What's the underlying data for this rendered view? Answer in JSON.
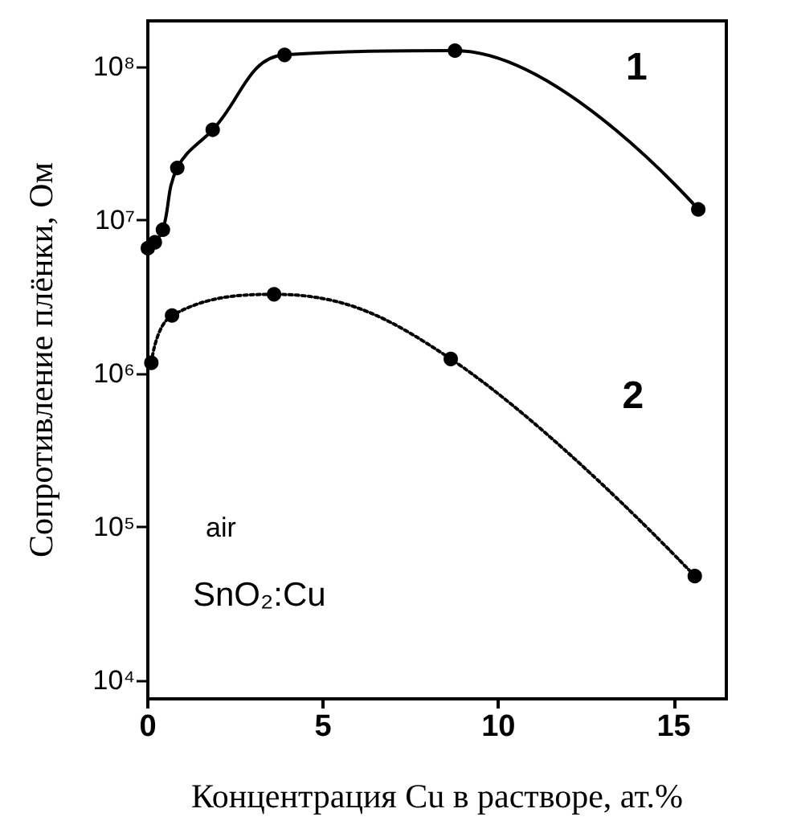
{
  "chart_data": {
    "type": "line",
    "xlabel": "Концентрация Cu в растворе, ат.%",
    "ylabel": "Сопротивление плёнки, Ом",
    "log": "y",
    "grid": false,
    "legend": false,
    "marker": "circle",
    "xlim": [
      0,
      16.5
    ],
    "xticks": [
      0,
      5,
      10,
      15
    ],
    "ylim": [
      7600,
      200000000
    ],
    "yticks": [
      {
        "value": 10000,
        "label": "10⁴"
      },
      {
        "value": 100000,
        "label": "10⁵"
      },
      {
        "value": 1000000,
        "label": "10⁶"
      },
      {
        "value": 10000000,
        "label": "10⁷"
      },
      {
        "value": 100000000,
        "label": "10⁸"
      }
    ],
    "series": [
      {
        "name": "1",
        "color": "#000000",
        "line_style": "solid",
        "x": [
          0,
          0.2,
          0.43,
          0.84,
          1.85,
          3.9,
          8.76,
          15.7
        ],
        "values": [
          6600000,
          7200000,
          8700000,
          22000000,
          39000000,
          120000000,
          128000000,
          11800000
        ]
      },
      {
        "name": "2",
        "color": "#000000",
        "line_style": "dotted",
        "x": [
          0.1,
          0.69,
          3.6,
          8.64,
          15.6
        ],
        "values": [
          1180000,
          2400000,
          3300000,
          1250000,
          48000
        ]
      }
    ],
    "annotations": [
      "air",
      "SnO₂:Cu"
    ]
  }
}
